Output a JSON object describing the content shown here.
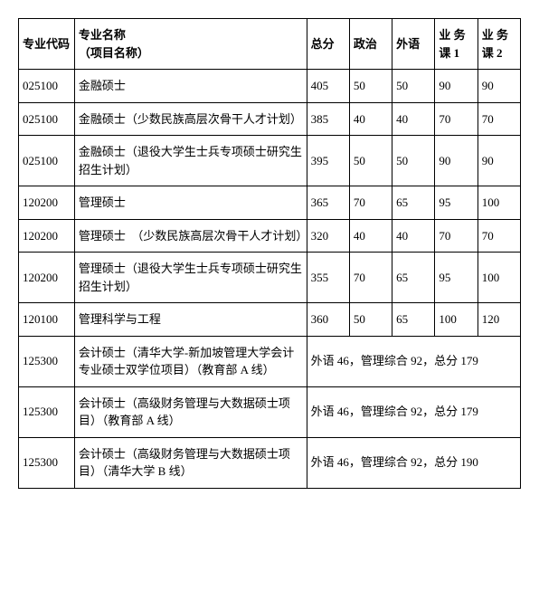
{
  "table": {
    "type": "table",
    "header": {
      "code": "专业代码",
      "name_line1": "专业名称",
      "name_line2": "（项目名称）",
      "total": "总分",
      "politics": "政治",
      "foreign": "外语",
      "course1_line1": "业 务",
      "course1_line2": "课 1",
      "course2_line1": "业 务",
      "course2_line2": "课 2"
    },
    "rows": [
      {
        "code": "025100",
        "name": "金融硕士",
        "total": "405",
        "politics": "50",
        "foreign": "50",
        "course1": "90",
        "course2": "90",
        "merged": false
      },
      {
        "code": "025100",
        "name": "金融硕士（少数民族高层次骨干人才计划）",
        "total": "385",
        "politics": "40",
        "foreign": "40",
        "course1": "70",
        "course2": "70",
        "merged": false
      },
      {
        "code": "025100",
        "name": "金融硕士（退役大学生士兵专项硕士研究生招生计划）",
        "total": "395",
        "politics": "50",
        "foreign": "50",
        "course1": "90",
        "course2": "90",
        "merged": false
      },
      {
        "code": "120200",
        "name": "管理硕士",
        "total": "365",
        "politics": "70",
        "foreign": "65",
        "course1": "95",
        "course2": "100",
        "merged": false
      },
      {
        "code": "120200",
        "name": "管理硕士　（少数民族高层次骨干人才计划）",
        "total": "320",
        "politics": "40",
        "foreign": "40",
        "course1": "70",
        "course2": "70",
        "merged": false
      },
      {
        "code": "120200",
        "name": "管理硕士（退役大学生士兵专项硕士研究生招生计划）",
        "total": "355",
        "politics": "70",
        "foreign": "65",
        "course1": "95",
        "course2": "100",
        "merged": false
      },
      {
        "code": "120100",
        "name": "管理科学与工程",
        "total": "360",
        "politics": "50",
        "foreign": "65",
        "course1": "100",
        "course2": "120",
        "merged": false
      },
      {
        "code": "125300",
        "name": "会计硕士（清华大学-新加坡管理大学会计专业硕士双学位项目）（教育部 A 线）",
        "merged": true,
        "merged_text": "外语 46，管理综合 92，总分 179"
      },
      {
        "code": "125300",
        "name": "会计硕士（高级财务管理与大数据硕士项目）（教育部 A 线）",
        "merged": true,
        "merged_text": "外语 46，管理综合 92，总分 179"
      },
      {
        "code": "125300",
        "name": "会计硕士（高级财务管理与大数据硕士项目）（清华大学 B 线）",
        "merged": true,
        "merged_text": "外语 46，管理综合 92，总分 190"
      }
    ],
    "styling": {
      "border_color": "#000000",
      "background_color": "#ffffff",
      "text_color": "#000000",
      "font_size": 13,
      "font_family": "SimSun",
      "cell_padding": 8,
      "column_widths": {
        "code": 55,
        "name": 228,
        "total": 42,
        "politics": 42,
        "foreign": 42,
        "course1": 42,
        "course2": 42
      }
    }
  }
}
